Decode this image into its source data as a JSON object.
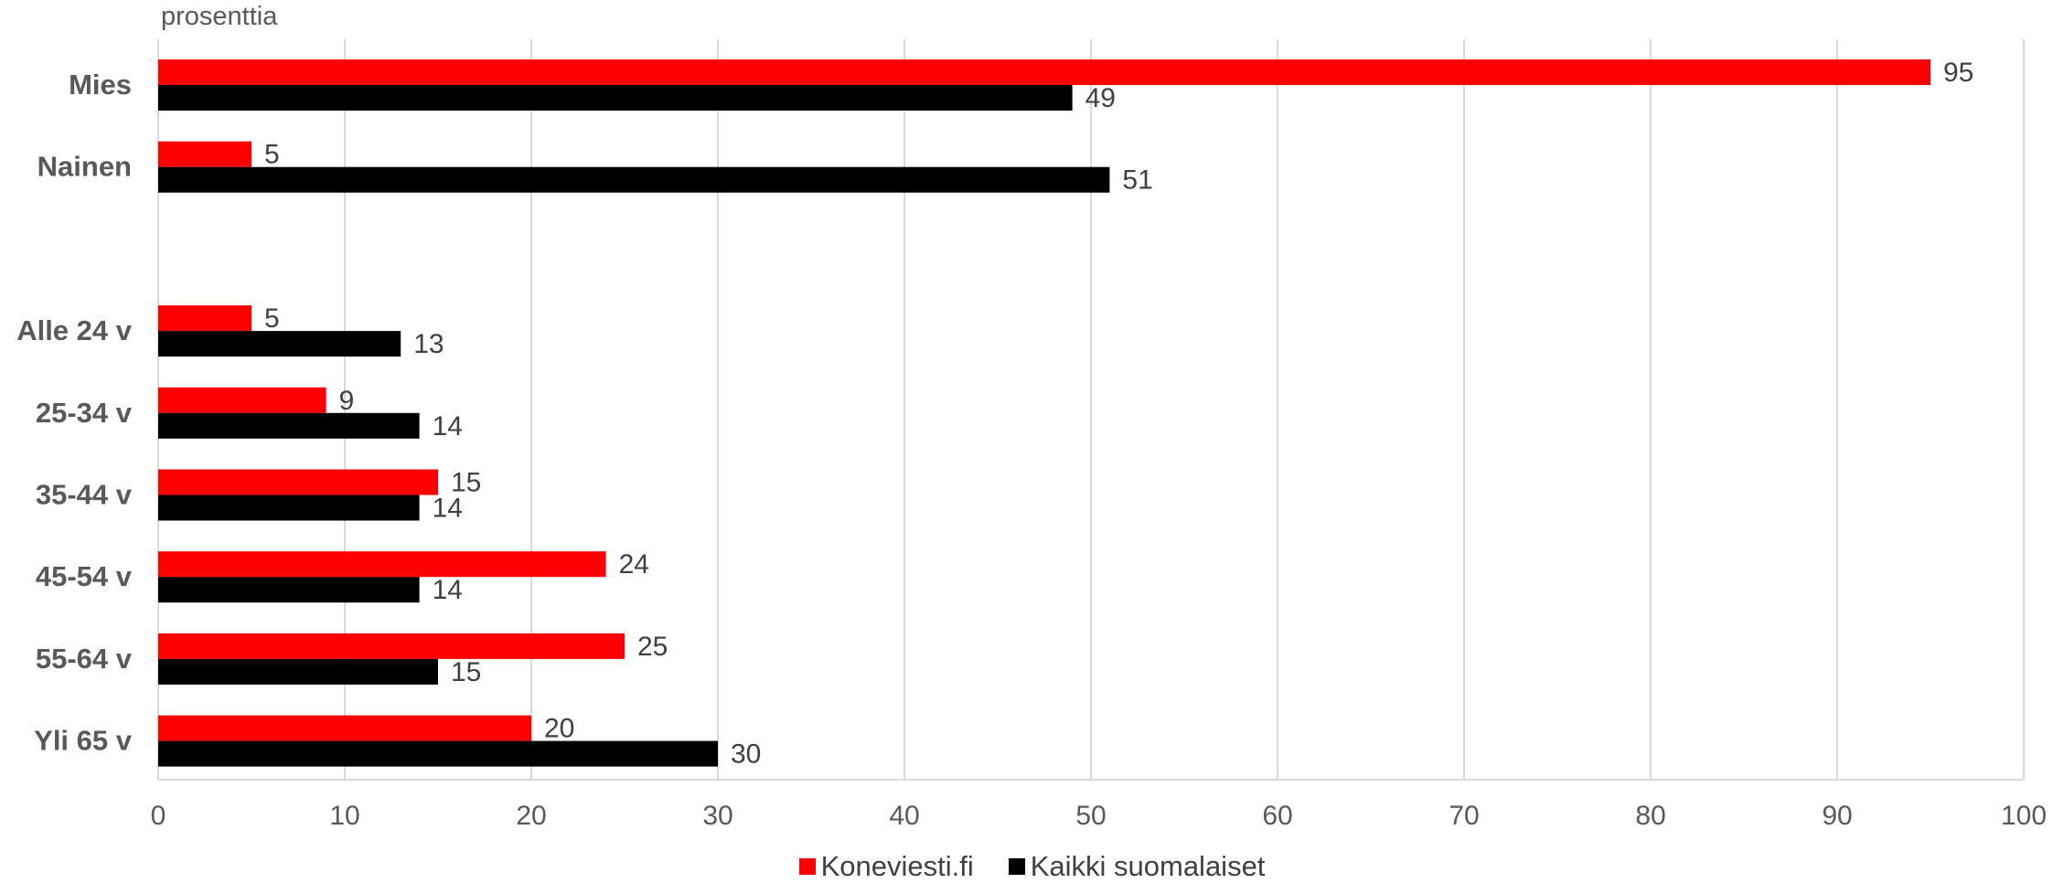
{
  "chart_data": {
    "type": "bar",
    "orientation": "horizontal",
    "unit_label": "prosenttia",
    "categories": [
      "Mies",
      "Nainen",
      "",
      "Alle 24 v",
      "25-34 v",
      "35-44 v",
      "45-54 v",
      "55-64 v",
      "Yli 65 v"
    ],
    "series": [
      {
        "name": "Koneviesti.fi",
        "color": "#ff0000",
        "values": [
          95,
          5,
          null,
          5,
          9,
          15,
          24,
          25,
          20
        ]
      },
      {
        "name": "Kaikki suomalaiset",
        "color": "#000000",
        "values": [
          49,
          51,
          null,
          13,
          14,
          14,
          14,
          15,
          30
        ]
      }
    ],
    "xlim": [
      0,
      100
    ],
    "xticks": [
      0,
      10,
      20,
      30,
      40,
      50,
      60,
      70,
      80,
      90,
      100
    ],
    "grid": true,
    "legend_position": "bottom"
  }
}
